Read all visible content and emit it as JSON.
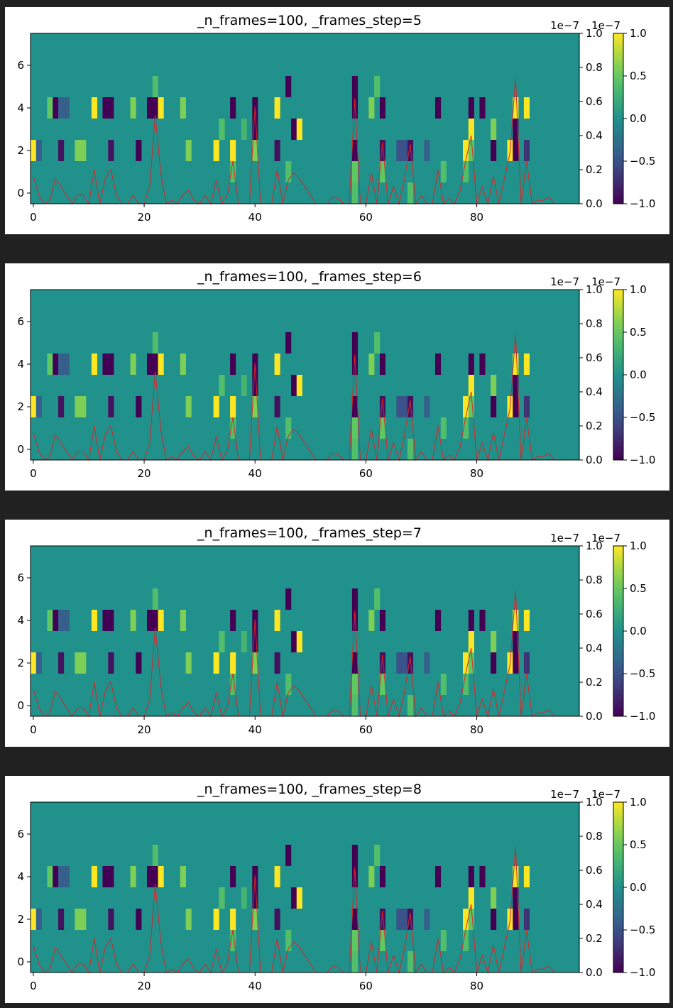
{
  "chart_data": [
    {
      "type": "heatmap",
      "title": "_n_frames=100, _frames_step=5"
    },
    {
      "type": "heatmap",
      "title": "_n_frames=100, _frames_step=6"
    },
    {
      "type": "heatmap",
      "title": "_n_frames=100, _frames_step=7"
    },
    {
      "type": "heatmap",
      "title": "_n_frames=100, _frames_step=8"
    }
  ],
  "shared": {
    "x_range": [
      -0.5,
      98.5
    ],
    "y_range": [
      -0.5,
      7.5
    ],
    "x_ticks": [
      0,
      20,
      40,
      60,
      80
    ],
    "y_ticks": [
      0,
      2,
      4,
      6
    ],
    "secondary_y": {
      "range": [
        0,
        1.0
      ],
      "ticks": [
        0.0,
        0.2,
        0.4,
        0.6,
        0.8,
        1.0
      ],
      "tick_labels": [
        "0.0",
        "0.2",
        "0.4",
        "0.6",
        "0.8",
        "1.0"
      ],
      "offset_label": "1e−7"
    },
    "colorbar": {
      "range": [
        -1.0,
        1.0
      ],
      "ticks": [
        1.0,
        0.5,
        0.0,
        -0.5,
        -1.0
      ],
      "tick_labels": [
        "1.0",
        "0.5",
        "0.0",
        "−0.5",
        "−1.0"
      ],
      "offset_label": "1e−7",
      "colormap": "viridis"
    },
    "background_value": 0.0,
    "heat_cells": [
      {
        "row": 2,
        "col": 0,
        "v": 1.0
      },
      {
        "row": 2,
        "col": 1,
        "v": -0.4
      },
      {
        "row": 2,
        "col": 5,
        "v": -0.9
      },
      {
        "row": 2,
        "col": 8,
        "v": 0.6
      },
      {
        "row": 2,
        "col": 9,
        "v": 0.6
      },
      {
        "row": 2,
        "col": 14,
        "v": -0.9
      },
      {
        "row": 2,
        "col": 19,
        "v": -1.0
      },
      {
        "row": 2,
        "col": 28,
        "v": 0.6
      },
      {
        "row": 2,
        "col": 33,
        "v": 1.0
      },
      {
        "row": 2,
        "col": 36,
        "v": 1.0
      },
      {
        "row": 2,
        "col": 40,
        "v": 0.6
      },
      {
        "row": 2,
        "col": 44,
        "v": -0.9
      },
      {
        "row": 2,
        "col": 58,
        "v": -1.0
      },
      {
        "row": 2,
        "col": 63,
        "v": -0.9
      },
      {
        "row": 2,
        "col": 66,
        "v": -0.5
      },
      {
        "row": 2,
        "col": 67,
        "v": -0.5
      },
      {
        "row": 2,
        "col": 68,
        "v": -0.9
      },
      {
        "row": 2,
        "col": 71,
        "v": -0.4
      },
      {
        "row": 2,
        "col": 78,
        "v": 1.0
      },
      {
        "row": 2,
        "col": 79,
        "v": 0.5
      },
      {
        "row": 2,
        "col": 83,
        "v": -1.0
      },
      {
        "row": 2,
        "col": 86,
        "v": 1.0
      },
      {
        "row": 2,
        "col": 87,
        "v": -1.0
      },
      {
        "row": 2,
        "col": 89,
        "v": -0.7
      },
      {
        "row": 4,
        "col": 3,
        "v": 0.5
      },
      {
        "row": 4,
        "col": 4,
        "v": -1.0
      },
      {
        "row": 4,
        "col": 5,
        "v": -0.4
      },
      {
        "row": 4,
        "col": 6,
        "v": -0.4
      },
      {
        "row": 4,
        "col": 11,
        "v": 1.0
      },
      {
        "row": 4,
        "col": 13,
        "v": -1.0
      },
      {
        "row": 4,
        "col": 14,
        "v": -1.0
      },
      {
        "row": 4,
        "col": 18,
        "v": 0.6
      },
      {
        "row": 4,
        "col": 21,
        "v": -1.0
      },
      {
        "row": 4,
        "col": 22,
        "v": -1.0
      },
      {
        "row": 4,
        "col": 23,
        "v": 1.0
      },
      {
        "row": 4,
        "col": 27,
        "v": 0.6
      },
      {
        "row": 4,
        "col": 36,
        "v": -1.0
      },
      {
        "row": 4,
        "col": 40,
        "v": -1.0
      },
      {
        "row": 4,
        "col": 44,
        "v": 1.0
      },
      {
        "row": 4,
        "col": 58,
        "v": -1.0
      },
      {
        "row": 4,
        "col": 61,
        "v": 0.6
      },
      {
        "row": 4,
        "col": 63,
        "v": -1.0
      },
      {
        "row": 4,
        "col": 73,
        "v": -1.0
      },
      {
        "row": 4,
        "col": 79,
        "v": -1.0
      },
      {
        "row": 4,
        "col": 81,
        "v": -1.0
      },
      {
        "row": 4,
        "col": 87,
        "v": 1.0
      },
      {
        "row": 4,
        "col": 89,
        "v": 1.0
      },
      {
        "row": 3,
        "col": 40,
        "v": -1.0
      },
      {
        "row": 3,
        "col": 47,
        "v": -1.0
      },
      {
        "row": 3,
        "col": 48,
        "v": 1.0
      },
      {
        "row": 3,
        "col": 79,
        "v": 1.0
      },
      {
        "row": 3,
        "col": 83,
        "v": 0.6
      },
      {
        "row": 3,
        "col": 87,
        "v": -1.0
      },
      {
        "row": 3,
        "col": 34,
        "v": 0.4
      },
      {
        "row": 3,
        "col": 38,
        "v": 0.3
      },
      {
        "row": 5,
        "col": 46,
        "v": -1.0
      },
      {
        "row": 5,
        "col": 58,
        "v": -1.0
      },
      {
        "row": 5,
        "col": 62,
        "v": 0.4
      },
      {
        "row": 5,
        "col": 22,
        "v": 0.4
      },
      {
        "row": 1,
        "col": 36,
        "v": 0.4
      },
      {
        "row": 1,
        "col": 46,
        "v": 0.4
      },
      {
        "row": 1,
        "col": 58,
        "v": 0.5
      },
      {
        "row": 1,
        "col": 63,
        "v": 0.5
      },
      {
        "row": 1,
        "col": 74,
        "v": 0.4
      },
      {
        "row": 1,
        "col": 78,
        "v": 0.4
      },
      {
        "row": 0,
        "col": 58,
        "v": 0.4
      },
      {
        "row": 0,
        "col": 68,
        "v": 0.4
      }
    ],
    "line": {
      "color": "#d62728",
      "x": [
        0,
        1,
        2,
        3,
        4,
        5,
        6,
        7,
        8,
        9,
        10,
        11,
        12,
        13,
        14,
        15,
        16,
        17,
        18,
        19,
        20,
        21,
        22,
        23,
        24,
        25,
        26,
        27,
        28,
        29,
        30,
        31,
        32,
        33,
        34,
        35,
        36,
        37,
        38,
        39,
        40,
        41,
        42,
        43,
        44,
        45,
        46,
        47,
        48,
        49,
        50,
        51,
        52,
        53,
        54,
        55,
        56,
        57,
        58,
        59,
        60,
        61,
        62,
        63,
        64,
        65,
        66,
        67,
        68,
        69,
        70,
        71,
        72,
        73,
        74,
        75,
        76,
        77,
        78,
        79,
        80,
        81,
        82,
        83,
        84,
        85,
        86,
        87,
        88,
        89,
        90,
        91,
        92,
        93,
        94,
        95
      ],
      "y": [
        0.16,
        0.05,
        0.0,
        0.02,
        0.15,
        0.1,
        0.05,
        0.0,
        0.05,
        0.05,
        0.0,
        0.2,
        0.0,
        0.15,
        0.2,
        0.05,
        0.0,
        0.0,
        0.05,
        0.0,
        0.0,
        0.1,
        0.52,
        0.18,
        0.0,
        0.02,
        0.0,
        0.05,
        0.08,
        0.02,
        0.0,
        0.05,
        0.0,
        0.14,
        0.0,
        0.05,
        0.25,
        0.0,
        0.0,
        0.0,
        0.57,
        0.0,
        0.0,
        0.0,
        0.2,
        0.0,
        0.14,
        0.18,
        0.15,
        0.1,
        0.05,
        0.0,
        0.0,
        0.0,
        0.04,
        0.03,
        0.0,
        0.0,
        0.62,
        0.0,
        0.0,
        0.18,
        0.0,
        0.36,
        0.0,
        0.1,
        0.0,
        0.15,
        0.35,
        0.0,
        0.05,
        0.0,
        0.0,
        0.2,
        0.0,
        0.03,
        0.0,
        0.08,
        0.25,
        0.4,
        0.0,
        0.1,
        0.0,
        0.16,
        0.0,
        0.15,
        0.3,
        0.74,
        0.0,
        0.25,
        0.0,
        0.02,
        0.02,
        0.04,
        0.0,
        0.0
      ]
    }
  }
}
